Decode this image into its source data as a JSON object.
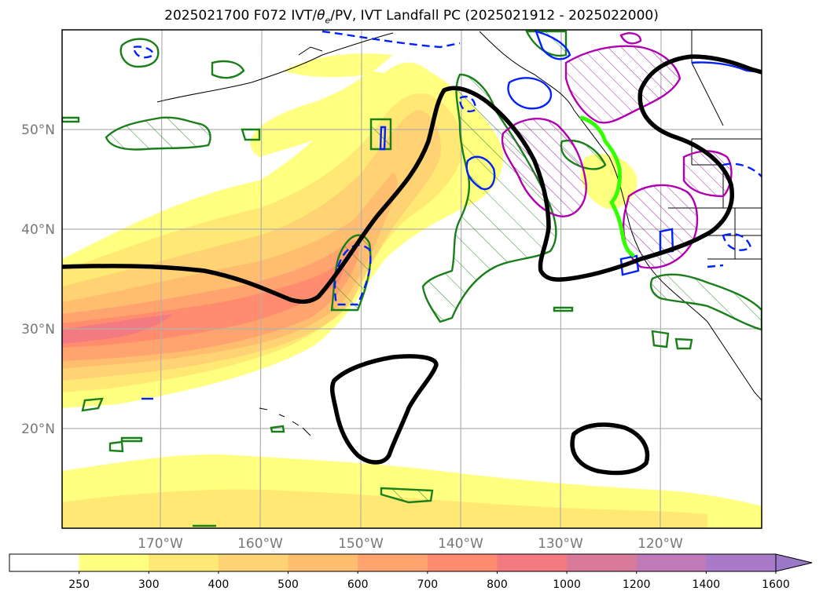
{
  "title": {
    "prefix": "2025021700 F072 IVT/",
    "theta": "θ",
    "theta_sub": "e",
    "suffix": "/PV, IVT Landfall PC (2025021912 - 2025022000)"
  },
  "map": {
    "lat_labels": [
      "50°N",
      "40°N",
      "30°N",
      "20°N"
    ],
    "lon_labels": [
      "170°W",
      "160°W",
      "150°W",
      "140°W",
      "130°W",
      "120°W"
    ]
  },
  "colorbar": {
    "ticks": [
      "250",
      "300",
      "400",
      "500",
      "600",
      "700",
      "800",
      "1000",
      "1200",
      "1400",
      "1600"
    ],
    "colors": [
      "#ffffff",
      "#ffff80",
      "#ffe873",
      "#ffd273",
      "#ffbd70",
      "#ffa46e",
      "#ff8c6e",
      "#f27a80",
      "#d97a9a",
      "#c07ab8",
      "#a87ac8"
    ]
  }
}
